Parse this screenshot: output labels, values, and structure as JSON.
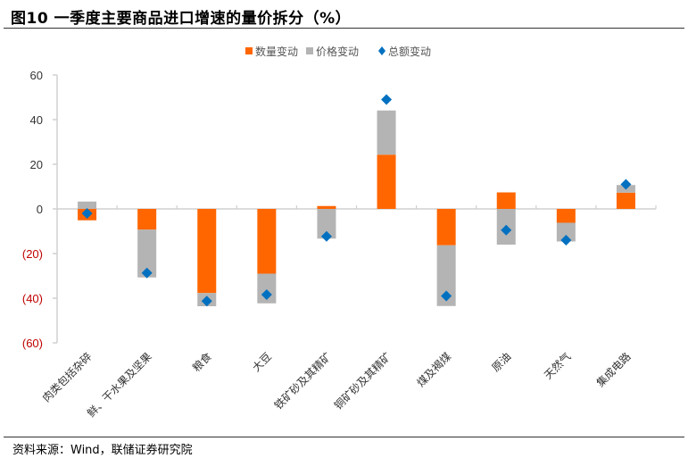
{
  "title": "图10 一季度主要商品进口增速的量价拆分（%）",
  "source": "资料来源：Wind，联储证券研究院",
  "colors": {
    "quantity": "#FF6600",
    "price": "#B4B4B4",
    "total": "#0070C0",
    "axis": "#D0D0D0",
    "negative_label": "#C00000"
  },
  "chart_data": {
    "type": "bar",
    "stacked": true,
    "title": "一季度主要商品进口增速的量价拆分（%）",
    "xlabel": "",
    "ylabel": "",
    "ylim": [
      -60,
      60
    ],
    "yticks": [
      60,
      40,
      20,
      0,
      -20,
      -40,
      -60
    ],
    "ytick_labels": [
      "60",
      "40",
      "20",
      "0",
      "(20)",
      "(40)",
      "(60)"
    ],
    "grid": false,
    "legend_position": "top-center",
    "categories": [
      "肉类包括杂碎",
      "鲜、干水果及坚果",
      "粮食",
      "大豆",
      "铁矿砂及其精矿",
      "铜矿砂及其精矿",
      "煤及褐煤",
      "原油",
      "天然气",
      "集成电路"
    ],
    "series": [
      {
        "name": "数量变动",
        "kind": "bar",
        "values": [
          -5.1,
          -9.3,
          -37.7,
          -29.0,
          1.3,
          24.3,
          -16.3,
          7.4,
          -6.2,
          7.3
        ]
      },
      {
        "name": "价格变动",
        "kind": "bar",
        "values": [
          3.3,
          -21.4,
          -5.9,
          -13.3,
          -13.3,
          19.8,
          -27.2,
          -16.0,
          -8.4,
          3.4
        ]
      },
      {
        "name": "总额变动",
        "kind": "marker",
        "values": [
          -2.0,
          -28.7,
          -41.3,
          -38.4,
          -12.3,
          49.0,
          -39.0,
          -9.5,
          -14.0,
          11.0
        ]
      }
    ]
  }
}
